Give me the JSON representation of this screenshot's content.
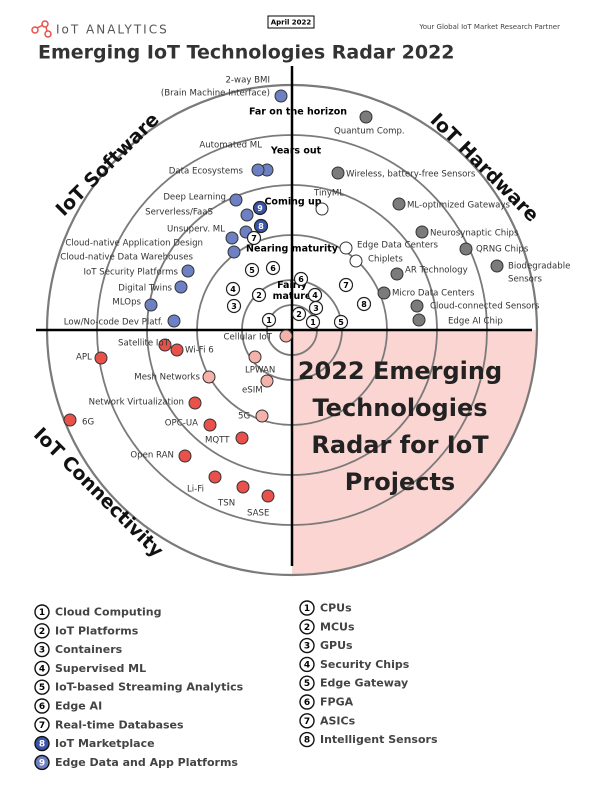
{
  "header": {
    "brand": "IoT ANALYTICS",
    "date": "April 2022",
    "tagline": "Your Global IoT Market Research Partner"
  },
  "title": "Emerging IoT Technologies Radar 2022",
  "rings": [
    [
      "Far on the horizon"
    ],
    [
      "Years out"
    ],
    [
      "Coming up"
    ],
    [
      "Nearing maturity"
    ],
    [
      "Fairly",
      "mature"
    ]
  ],
  "quadrants": [
    "IoT Software",
    "IoT Hardware",
    "IoT Connectivity"
  ],
  "center_text": [
    "2022 Emerging",
    "Technologies",
    "Radar for IoT",
    "Projects"
  ],
  "software": [
    {
      "lines": [
        "2-way BMI",
        "(Brain Machine Interface)"
      ]
    },
    {
      "lines": [
        "Automated ML"
      ]
    },
    {
      "lines": [
        "Data Ecosystems"
      ]
    },
    {
      "lines": [
        "Deep Learning"
      ]
    },
    {
      "lines": [
        "Serverless/FaaS"
      ]
    },
    {
      "lines": [
        "Unsuperv. ML"
      ]
    },
    {
      "lines": [
        "Cloud-native Application Design"
      ]
    },
    {
      "lines": [
        "Cloud-native Data Warehouses"
      ]
    },
    {
      "lines": [
        "IoT Security Platforms"
      ]
    },
    {
      "lines": [
        "Digital Twins"
      ]
    },
    {
      "lines": [
        "MLOps"
      ]
    },
    {
      "lines": [
        "Low/No-code Dev Platf."
      ]
    }
  ],
  "software_numbers": [
    "9",
    "8",
    "7",
    "6",
    "5",
    "4",
    "3",
    "2",
    "1"
  ],
  "hardware": [
    {
      "lines": [
        "Quantum Comp."
      ]
    },
    {
      "lines": [
        "Wireless, battery-free Sensors"
      ]
    },
    {
      "lines": [
        "ML-optimized Gateways"
      ]
    },
    {
      "lines": [
        "TinyML"
      ]
    },
    {
      "lines": [
        "Neurosynaptic Chips"
      ]
    },
    {
      "lines": [
        "Edge Data Centers"
      ]
    },
    {
      "lines": [
        "Chiplets"
      ]
    },
    {
      "lines": [
        "QRNG Chips"
      ]
    },
    {
      "lines": [
        "Biodegradable",
        "Sensors"
      ]
    },
    {
      "lines": [
        "AR Technology"
      ]
    },
    {
      "lines": [
        "Micro Data Centers"
      ]
    },
    {
      "lines": [
        "Cloud-connected Sensors"
      ]
    },
    {
      "lines": [
        "Edge AI Chip"
      ]
    }
  ],
  "hardware_numbers": [
    "6",
    "4",
    "7",
    "8",
    "3",
    "2",
    "1",
    "5"
  ],
  "connectivity": [
    {
      "lines": [
        "Cellular IoT"
      ]
    },
    {
      "lines": [
        "Satellite IoT"
      ]
    },
    {
      "lines": [
        "APL"
      ]
    },
    {
      "lines": [
        "Wi-Fi 6"
      ]
    },
    {
      "lines": [
        "LPWAN"
      ]
    },
    {
      "lines": [
        "Mesh Networks"
      ]
    },
    {
      "lines": [
        "eSIM"
      ]
    },
    {
      "lines": [
        "Network Virtualization"
      ]
    },
    {
      "lines": [
        "6G"
      ]
    },
    {
      "lines": [
        "5G"
      ]
    },
    {
      "lines": [
        "OPC-UA"
      ]
    },
    {
      "lines": [
        "MQTT"
      ]
    },
    {
      "lines": [
        "Open RAN"
      ]
    },
    {
      "lines": [
        "Li-Fi"
      ]
    },
    {
      "lines": [
        "TSN"
      ]
    },
    {
      "lines": [
        "SASE"
      ]
    }
  ],
  "legend": {
    "left": [
      {
        "number": "1",
        "label": "Cloud Computing"
      },
      {
        "number": "2",
        "label": "IoT Platforms"
      },
      {
        "number": "3",
        "label": "Containers"
      },
      {
        "number": "4",
        "label": "Supervised ML"
      },
      {
        "number": "5",
        "label": "IoT-based Streaming Analytics"
      },
      {
        "number": "6",
        "label": "Edge AI"
      },
      {
        "number": "7",
        "label": "Real-time Databases"
      },
      {
        "number": "8",
        "label": "IoT Marketplace"
      },
      {
        "number": "9",
        "label": "Edge Data and App Platforms"
      }
    ],
    "right": [
      {
        "number": "1",
        "label": "CPUs"
      },
      {
        "number": "2",
        "label": "MCUs"
      },
      {
        "number": "3",
        "label": "GPUs"
      },
      {
        "number": "4",
        "label": "Security Chips"
      },
      {
        "number": "5",
        "label": "Edge Gateway"
      },
      {
        "number": "6",
        "label": "FPGA"
      },
      {
        "number": "7",
        "label": "ASICs"
      },
      {
        "number": "8",
        "label": "Intelligent Sensors"
      }
    ]
  }
}
